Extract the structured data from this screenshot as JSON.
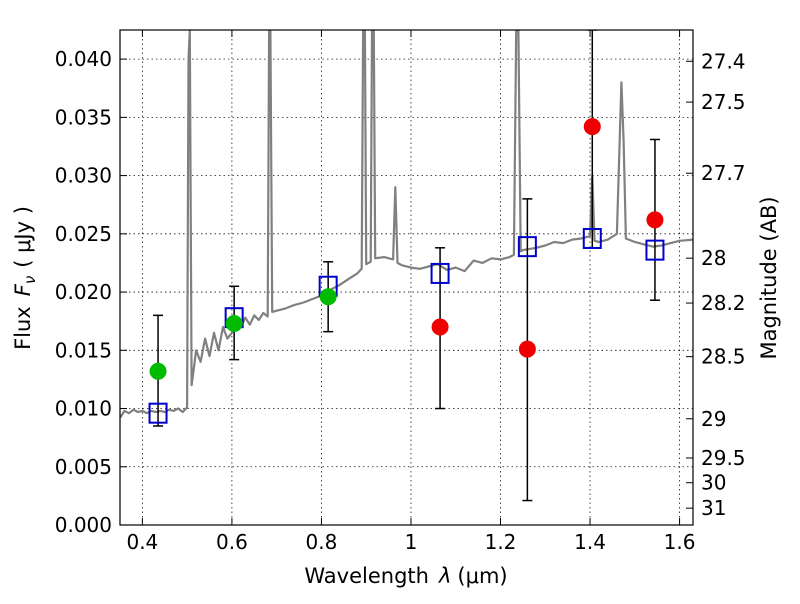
{
  "chart_data": {
    "type": "scatter",
    "xlabel": "Wavelength",
    "xlabel_symbol": "λ",
    "xlabel_unit": "(μm)",
    "ylabel": "Flux",
    "ylabel_symbol": "F",
    "ylabel_subscript": "ν",
    "ylabel_unit": "( μJy )",
    "y2label": "Magnitude (AB)",
    "xlim": [
      0.35,
      1.63
    ],
    "ylim": [
      0.0,
      0.0425
    ],
    "grid": true,
    "x_ticks": [
      {
        "value": 0.4,
        "label": "0.4"
      },
      {
        "value": 0.6,
        "label": "0.6"
      },
      {
        "value": 0.8,
        "label": "0.8"
      },
      {
        "value": 1.0,
        "label": "1"
      },
      {
        "value": 1.2,
        "label": "1.2"
      },
      {
        "value": 1.4,
        "label": "1.4"
      },
      {
        "value": 1.6,
        "label": "1.6"
      }
    ],
    "y_ticks": [
      {
        "value": 0.0,
        "label": "0.000"
      },
      {
        "value": 0.005,
        "label": "0.005"
      },
      {
        "value": 0.01,
        "label": "0.010"
      },
      {
        "value": 0.015,
        "label": "0.015"
      },
      {
        "value": 0.02,
        "label": "0.020"
      },
      {
        "value": 0.025,
        "label": "0.025"
      },
      {
        "value": 0.03,
        "label": "0.030"
      },
      {
        "value": 0.035,
        "label": "0.035"
      },
      {
        "value": 0.04,
        "label": "0.040"
      }
    ],
    "y2_ticks": [
      {
        "value": 27.4,
        "label": "27.4"
      },
      {
        "value": 27.5,
        "label": "27.5"
      },
      {
        "value": 27.7,
        "label": "27.7"
      },
      {
        "value": 28.0,
        "label": "28"
      },
      {
        "value": 28.2,
        "label": "28.2"
      },
      {
        "value": 28.5,
        "label": "28.5"
      },
      {
        "value": 29.0,
        "label": "29"
      },
      {
        "value": 29.5,
        "label": "29.5"
      },
      {
        "value": 30.0,
        "label": "30"
      },
      {
        "value": 31.0,
        "label": "31"
      }
    ],
    "series": [
      {
        "kind": "spectrum-line",
        "color": "#808080",
        "x": [
          0.35,
          0.36,
          0.37,
          0.38,
          0.39,
          0.4,
          0.41,
          0.42,
          0.43,
          0.44,
          0.45,
          0.46,
          0.47,
          0.48,
          0.49,
          0.5,
          0.503,
          0.506,
          0.51,
          0.515,
          0.52,
          0.53,
          0.54,
          0.55,
          0.56,
          0.57,
          0.58,
          0.59,
          0.6,
          0.61,
          0.62,
          0.63,
          0.64,
          0.65,
          0.66,
          0.67,
          0.68,
          0.683,
          0.686,
          0.69,
          0.7,
          0.72,
          0.74,
          0.76,
          0.78,
          0.8,
          0.82,
          0.84,
          0.86,
          0.88,
          0.89,
          0.893,
          0.897,
          0.9,
          0.91,
          0.913,
          0.917,
          0.92,
          0.94,
          0.96,
          0.965,
          0.97,
          0.98,
          1.0,
          1.02,
          1.04,
          1.06,
          1.08,
          1.1,
          1.12,
          1.14,
          1.16,
          1.18,
          1.2,
          1.22,
          1.23,
          1.235,
          1.24,
          1.245,
          1.25,
          1.28,
          1.3,
          1.32,
          1.34,
          1.36,
          1.38,
          1.4,
          1.405,
          1.41,
          1.42,
          1.44,
          1.46,
          1.47,
          1.475,
          1.48,
          1.5,
          1.52,
          1.54,
          1.56,
          1.58,
          1.6,
          1.63
        ],
        "y": [
          0.0092,
          0.0098,
          0.0096,
          0.0099,
          0.0097,
          0.0098,
          0.0096,
          0.0098,
          0.0097,
          0.0098,
          0.0097,
          0.0099,
          0.0098,
          0.01,
          0.0097,
          0.0101,
          0.04,
          0.0425,
          0.012,
          0.0135,
          0.015,
          0.014,
          0.016,
          0.0145,
          0.0165,
          0.015,
          0.017,
          0.016,
          0.0165,
          0.0175,
          0.017,
          0.0178,
          0.0172,
          0.018,
          0.0176,
          0.0182,
          0.0179,
          0.0425,
          0.0425,
          0.0183,
          0.0184,
          0.0186,
          0.0189,
          0.0191,
          0.0194,
          0.0197,
          0.0202,
          0.0206,
          0.0211,
          0.0216,
          0.022,
          0.0425,
          0.0425,
          0.0224,
          0.0226,
          0.0425,
          0.0425,
          0.0229,
          0.023,
          0.0228,
          0.029,
          0.0225,
          0.0223,
          0.0221,
          0.022,
          0.0222,
          0.0224,
          0.0219,
          0.0221,
          0.0218,
          0.0227,
          0.0225,
          0.0229,
          0.0228,
          0.023,
          0.0232,
          0.0425,
          0.0425,
          0.0235,
          0.0236,
          0.0238,
          0.024,
          0.0243,
          0.0242,
          0.0245,
          0.0246,
          0.0248,
          0.03,
          0.0244,
          0.0243,
          0.0245,
          0.025,
          0.038,
          0.033,
          0.0246,
          0.0243,
          0.0241,
          0.0239,
          0.024,
          0.0242,
          0.0244,
          0.0245
        ]
      },
      {
        "kind": "model-boxes",
        "marker": "open-square",
        "color": "#0000cc",
        "x": [
          0.435,
          0.605,
          0.815,
          1.065,
          1.26,
          1.405,
          1.545
        ],
        "y": [
          0.0096,
          0.0178,
          0.0205,
          0.0216,
          0.0239,
          0.0246,
          0.0236
        ]
      },
      {
        "kind": "observed-green",
        "marker": "filled-circle",
        "color": "#00bb00",
        "x": [
          0.435,
          0.605,
          0.815
        ],
        "y": [
          0.0132,
          0.0173,
          0.0196
        ],
        "yerr_low": [
          0.0085,
          0.0142,
          0.0166
        ],
        "yerr_high": [
          0.018,
          0.0205,
          0.0226
        ]
      },
      {
        "kind": "observed-red",
        "marker": "filled-circle",
        "color": "#ee0000",
        "x": [
          1.065,
          1.26,
          1.405,
          1.545
        ],
        "y": [
          0.017,
          0.0151,
          0.0342,
          0.0262
        ],
        "yerr_low": [
          0.01,
          0.0021,
          0.0238,
          0.0193
        ],
        "yerr_high": [
          0.0238,
          0.028,
          0.0425,
          0.0331
        ]
      }
    ]
  }
}
